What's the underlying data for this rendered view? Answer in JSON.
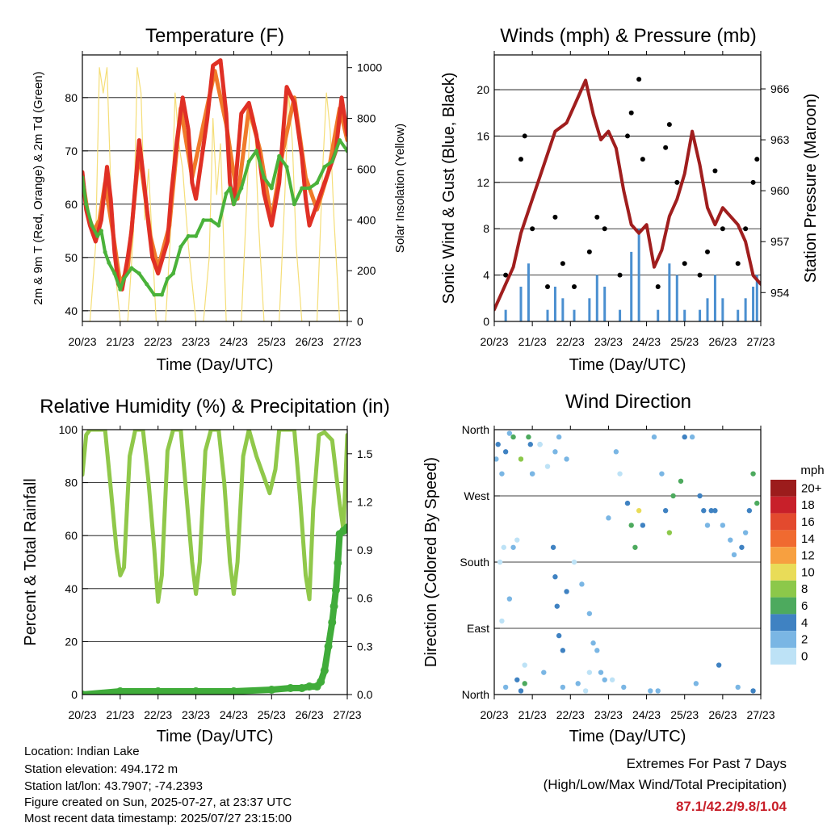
{
  "footer": {
    "location": "Location: Indian Lake",
    "elevation": "Station elevation: 494.172 m",
    "latlon": "Station lat/lon: 43.7907; -74.2393",
    "created": "Figure created on Sun, 2025-07-27, at 23:37 UTC",
    "latest": "Most recent data timestamp: 2025/07/27 23:15:00"
  },
  "extremes": {
    "title": "Extremes For Past 7 Days",
    "subtitle": "(High/Low/Max Wind/Total Precipitation)",
    "values": "87.1/42.2/9.8/1.04",
    "value_color": "#c8202a"
  },
  "chart_data": [
    {
      "type": "line",
      "title": "Temperature (F)",
      "xlabel": "Time (Day/UTC)",
      "ylabel": "2m & 9m T (Red, Orange) & 2m Td (Green)",
      "ylabel_right": "Solar Insolation (Yellow)",
      "categories": [
        "20/23",
        "21/23",
        "22/23",
        "23/23",
        "24/23",
        "25/23",
        "26/23",
        "27/23"
      ],
      "xlim": [
        0,
        7
      ],
      "ylim": [
        38,
        88
      ],
      "yticks": [
        40,
        50,
        60,
        70,
        80
      ],
      "ylim_right": [
        0,
        1050
      ],
      "yticks_right": [
        0,
        200,
        400,
        600,
        800,
        1000
      ],
      "grid": true,
      "series": [
        {
          "axis": "left",
          "color": "#e03025",
          "x": [
            0,
            0.1,
            0.2,
            0.35,
            0.5,
            0.65,
            0.75,
            0.85,
            0.95,
            1.05,
            1.2,
            1.3,
            1.5,
            1.6,
            1.75,
            1.85,
            2.0,
            2.25,
            2.35,
            2.5,
            2.65,
            2.8,
            2.9,
            3.0,
            3.3,
            3.45,
            3.65,
            3.8,
            3.9,
            4.0,
            4.2,
            4.4,
            4.6,
            4.8,
            5.0,
            5.2,
            5.4,
            5.6,
            5.8,
            5.9,
            6.0,
            6.2,
            6.4,
            6.55,
            6.7,
            6.85,
            7.0
          ],
          "y": [
            66,
            59,
            56,
            53,
            57,
            67,
            61,
            51,
            45,
            44,
            50,
            55,
            72,
            66,
            56,
            50,
            47,
            53,
            62,
            72,
            80,
            74,
            64,
            61,
            76,
            86,
            87,
            77,
            64,
            60,
            77,
            79,
            73,
            62,
            56,
            64,
            82,
            79,
            69,
            61,
            56,
            60,
            64,
            67,
            70,
            80,
            73
          ]
        },
        {
          "axis": "left",
          "color": "#f07a2a",
          "x": [
            0,
            0.15,
            0.3,
            0.45,
            0.6,
            0.8,
            1.0,
            1.2,
            1.5,
            1.8,
            2.0,
            2.3,
            2.6,
            2.9,
            3.2,
            3.5,
            3.8,
            4.1,
            4.4,
            4.7,
            5.0,
            5.3,
            5.6,
            5.9,
            6.2,
            6.5,
            6.8,
            7.0
          ],
          "y": [
            65,
            58,
            55,
            57,
            64,
            55,
            45,
            48,
            70,
            54,
            48,
            56,
            78,
            65,
            75,
            85,
            75,
            61,
            78,
            70,
            57,
            70,
            80,
            65,
            59,
            66,
            78,
            72
          ]
        },
        {
          "axis": "left",
          "color": "#4ab23a",
          "x": [
            0,
            0.1,
            0.25,
            0.4,
            0.5,
            0.6,
            0.7,
            0.85,
            1.0,
            1.1,
            1.3,
            1.5,
            1.7,
            1.9,
            2.1,
            2.25,
            2.4,
            2.6,
            2.8,
            3.0,
            3.2,
            3.4,
            3.6,
            3.8,
            3.9,
            4.0,
            4.2,
            4.4,
            4.6,
            4.8,
            5.0,
            5.2,
            5.4,
            5.6,
            5.8,
            6.0,
            6.2,
            6.4,
            6.6,
            6.8,
            7.0
          ],
          "y": [
            65,
            60,
            56,
            54,
            55,
            51,
            49,
            47,
            44,
            46,
            48,
            47,
            45,
            43,
            43,
            46,
            47,
            52,
            54,
            54,
            57,
            57,
            56,
            62,
            63,
            60,
            63,
            68,
            70,
            65,
            63,
            69,
            67,
            60,
            63,
            63,
            64,
            67,
            68,
            72,
            70
          ]
        },
        {
          "axis": "right",
          "color": "#f5de78",
          "x": [
            0,
            0.2,
            0.35,
            0.45,
            0.55,
            0.65,
            0.8,
            1.0,
            1.2,
            1.35,
            1.45,
            1.55,
            1.65,
            1.75,
            1.95,
            2.2,
            2.35,
            2.45,
            2.55,
            2.65,
            2.8,
            3.0,
            3.2,
            3.35,
            3.45,
            3.55,
            3.65,
            3.8,
            4.0,
            4.2,
            4.35,
            4.45,
            4.55,
            4.65,
            4.8,
            5.0,
            5.2,
            5.35,
            5.45,
            5.55,
            5.65,
            5.8,
            6.0,
            6.2,
            6.35,
            6.45,
            6.55,
            6.65,
            6.8,
            6.9,
            7.0
          ],
          "y": [
            0,
            0,
            300,
            1000,
            900,
            1000,
            300,
            0,
            0,
            350,
            1000,
            900,
            400,
            600,
            0,
            0,
            400,
            900,
            700,
            600,
            300,
            0,
            0,
            250,
            800,
            500,
            700,
            0,
            0,
            0,
            500,
            850,
            800,
            400,
            0,
            0,
            0,
            500,
            900,
            700,
            300,
            0,
            0,
            0,
            600,
            900,
            750,
            400,
            0,
            0,
            0
          ]
        }
      ]
    },
    {
      "type": "scatter",
      "title": "Winds (mph) & Pressure (mb)",
      "xlabel": "Time (Day/UTC)",
      "ylabel": "Sonic Wind & Gust (Blue, Black)",
      "ylabel_right": "Station Pressure (Maroon)",
      "categories": [
        "20/23",
        "21/23",
        "22/23",
        "23/23",
        "24/23",
        "25/23",
        "26/23",
        "27/23"
      ],
      "xlim": [
        0,
        7
      ],
      "ylim": [
        0,
        23
      ],
      "yticks": [
        0,
        4,
        8,
        12,
        16,
        20
      ],
      "ylim_right": [
        952.3,
        968.0
      ],
      "yticks_right": [
        954,
        957,
        960,
        963,
        966
      ],
      "grid": true,
      "series": [
        {
          "kind": "pressure-line",
          "color": "#a01e1e",
          "x": [
            0,
            0.3,
            0.5,
            0.7,
            1.0,
            1.3,
            1.6,
            1.9,
            2.2,
            2.4,
            2.6,
            2.8,
            3.0,
            3.2,
            3.4,
            3.6,
            3.8,
            4.0,
            4.2,
            4.4,
            4.6,
            4.8,
            5.0,
            5.2,
            5.4,
            5.6,
            5.8,
            6.0,
            6.2,
            6.4,
            6.6,
            6.8,
            7.0
          ],
          "y": [
            953.0,
            954.5,
            955.5,
            957.5,
            959.5,
            961.5,
            963.5,
            964.0,
            965.5,
            966.5,
            964.5,
            963.0,
            963.5,
            962.5,
            960.0,
            958.0,
            957.5,
            958.0,
            955.5,
            956.5,
            958.5,
            959.5,
            961.0,
            963.5,
            961.5,
            959.0,
            958.0,
            959.0,
            958.5,
            958.0,
            957.0,
            955.0,
            954.5
          ]
        },
        {
          "kind": "gust",
          "color": "#000000",
          "x": [
            0.3,
            0.7,
            0.8,
            1.0,
            1.4,
            1.6,
            1.8,
            2.1,
            2.5,
            2.7,
            2.9,
            3.3,
            3.5,
            3.6,
            3.8,
            3.9,
            4.3,
            4.5,
            4.6,
            4.8,
            5.0,
            5.4,
            5.6,
            5.8,
            6.0,
            6.4,
            6.6,
            6.8,
            6.9
          ],
          "y": [
            4,
            14,
            16,
            8,
            3,
            9,
            5,
            3,
            6,
            9,
            8,
            4,
            16,
            18,
            20.9,
            14,
            3,
            15,
            17,
            12,
            5,
            4,
            6,
            13,
            8,
            5,
            8,
            12,
            14
          ]
        },
        {
          "kind": "wind",
          "color": "#4a8fd0",
          "x": [
            0.3,
            0.7,
            0.9,
            1.4,
            1.6,
            1.8,
            2.1,
            2.5,
            2.7,
            2.9,
            3.3,
            3.6,
            3.8,
            4.3,
            4.6,
            4.8,
            5.0,
            5.4,
            5.6,
            5.8,
            6.0,
            6.4,
            6.6,
            6.8,
            6.9
          ],
          "y": [
            1,
            3,
            5,
            1,
            3,
            2,
            1,
            2,
            4,
            3,
            1,
            6,
            8,
            1,
            5,
            4,
            1,
            1,
            2,
            4,
            2,
            1,
            2,
            3,
            4
          ]
        }
      ]
    },
    {
      "type": "line",
      "title": "Relative Humidity (%) & Precipitation (in)",
      "xlabel": "Time (Day/UTC)",
      "ylabel": "Percent & Total Rainfall",
      "categories": [
        "20/23",
        "21/23",
        "22/23",
        "23/23",
        "24/23",
        "25/23",
        "26/23",
        "27/23"
      ],
      "xlim": [
        0,
        7
      ],
      "ylim": [
        0,
        100
      ],
      "yticks": [
        0,
        20,
        40,
        60,
        80,
        100
      ],
      "ylim_right": [
        0,
        1.65
      ],
      "yticks_right": [
        0.0,
        0.3,
        0.6,
        0.9,
        1.2,
        1.5
      ],
      "grid": true,
      "series": [
        {
          "kind": "rh",
          "color": "#90c84a",
          "x": [
            0,
            0.1,
            0.2,
            0.6,
            0.75,
            0.9,
            1.0,
            1.1,
            1.25,
            1.4,
            1.6,
            1.75,
            1.9,
            2.0,
            2.1,
            2.25,
            2.4,
            2.6,
            2.75,
            2.9,
            3.0,
            3.1,
            3.25,
            3.4,
            3.6,
            3.75,
            3.9,
            4.0,
            4.1,
            4.25,
            4.4,
            4.6,
            4.8,
            4.95,
            5.1,
            5.2,
            5.4,
            5.6,
            5.75,
            5.9,
            6.0,
            6.1,
            6.25,
            6.4,
            6.6,
            6.8,
            6.9,
            7.0
          ],
          "y": [
            83,
            98,
            100,
            100,
            78,
            55,
            45,
            48,
            90,
            100,
            100,
            80,
            55,
            35,
            45,
            92,
            100,
            100,
            75,
            50,
            38,
            50,
            92,
            100,
            100,
            80,
            50,
            38,
            50,
            90,
            100,
            90,
            82,
            76,
            85,
            100,
            100,
            100,
            75,
            45,
            36,
            70,
            98,
            99,
            96,
            72,
            62,
            98
          ]
        },
        {
          "kind": "precip",
          "color": "#40ac3a",
          "x": [
            0,
            1,
            2,
            3,
            4,
            5,
            5.5,
            5.8,
            6.0,
            6.2,
            6.3,
            6.4,
            6.5,
            6.6,
            6.65,
            6.7,
            6.75,
            6.8,
            6.9,
            7.0
          ],
          "y": [
            0.0,
            0.02,
            0.02,
            0.02,
            0.02,
            0.03,
            0.04,
            0.04,
            0.05,
            0.05,
            0.08,
            0.15,
            0.3,
            0.45,
            0.55,
            0.65,
            0.82,
            1.0,
            1.02,
            1.04
          ]
        }
      ]
    },
    {
      "type": "scatter",
      "title": "Wind Direction",
      "xlabel": "Time (Day/UTC)",
      "ylabel": "Direction (Colored By Speed)",
      "categories": [
        "20/23",
        "21/23",
        "22/23",
        "23/23",
        "24/23",
        "25/23",
        "26/23",
        "27/23"
      ],
      "xlim": [
        0,
        7
      ],
      "ylim": [
        0,
        360
      ],
      "yticks": [
        "North",
        "East",
        "South",
        "West",
        "North"
      ],
      "ytick_values": [
        0,
        90,
        180,
        270,
        360
      ],
      "grid": true,
      "legend": {
        "title": "mph",
        "labels": [
          "20+",
          "18",
          "16",
          "14",
          "12",
          "10",
          "8",
          "6",
          "4",
          "2",
          "0"
        ],
        "colors": [
          "#9c1c1c",
          "#c8202a",
          "#e34a2e",
          "#f06a30",
          "#f7a040",
          "#e9dc58",
          "#8cc84a",
          "#4daa5e",
          "#3f82c2",
          "#7ab6e4",
          "#bde2f6"
        ]
      },
      "points": {
        "x": [
          0.05,
          0.1,
          0.2,
          0.3,
          0.4,
          0.5,
          0.7,
          0.9,
          0.95,
          0.2,
          0.4,
          0.6,
          0.5,
          0.8,
          1.0,
          1.2,
          1.4,
          1.6,
          1.7,
          1.9,
          1.55,
          1.6,
          1.65,
          1.7,
          1.8,
          1.9,
          2.1,
          2.3,
          2.5,
          2.6,
          2.7,
          2.8,
          2.9,
          3.0,
          3.2,
          3.3,
          3.5,
          3.6,
          3.7,
          3.8,
          3.9,
          4.2,
          4.4,
          4.5,
          4.6,
          4.7,
          4.9,
          5.0,
          5.2,
          5.4,
          5.5,
          5.6,
          5.7,
          5.8,
          6.0,
          6.2,
          6.3,
          6.5,
          6.6,
          6.7,
          6.8,
          6.9,
          0.3,
          0.6,
          0.7,
          0.8,
          1.3,
          1.8,
          2.4,
          2.2,
          3.1,
          3.4,
          4.3,
          4.1,
          5.3,
          5.9,
          6.4,
          6.8,
          2.5,
          1.2,
          1.0,
          0.15,
          0.25
        ],
        "y": [
          320,
          340,
          300,
          330,
          355,
          350,
          320,
          350,
          340,
          100,
          130,
          210,
          200,
          40,
          300,
          340,
          310,
          330,
          350,
          320,
          200,
          160,
          120,
          80,
          60,
          140,
          180,
          150,
          110,
          70,
          60,
          30,
          20,
          240,
          330,
          300,
          260,
          230,
          200,
          250,
          230,
          350,
          300,
          250,
          220,
          270,
          290,
          350,
          350,
          270,
          250,
          230,
          250,
          250,
          230,
          210,
          190,
          200,
          220,
          250,
          300,
          260,
          10,
          20,
          5,
          15,
          30,
          10,
          5,
          15,
          20,
          10,
          5,
          5,
          15,
          40,
          10,
          5,
          30,
          340,
          300,
          180,
          200
        ],
        "speed": [
          1,
          3,
          1,
          4,
          1,
          5,
          7,
          5,
          4,
          0,
          1,
          0,
          1,
          0,
          1,
          1,
          0,
          1,
          2,
          1,
          4,
          4,
          3,
          3,
          4,
          3,
          0,
          1,
          1,
          2,
          1,
          1,
          1,
          2,
          1,
          0,
          4,
          5,
          6,
          9,
          3,
          1,
          2,
          4,
          7,
          6,
          5,
          3,
          2,
          3,
          4,
          2,
          3,
          4,
          2,
          1,
          2,
          4,
          2,
          3,
          5,
          6,
          1,
          3,
          4,
          5,
          1,
          1,
          0,
          2,
          0,
          1,
          1,
          2,
          1,
          3,
          2,
          4,
          0,
          0,
          1,
          0,
          0
        ]
      }
    }
  ]
}
